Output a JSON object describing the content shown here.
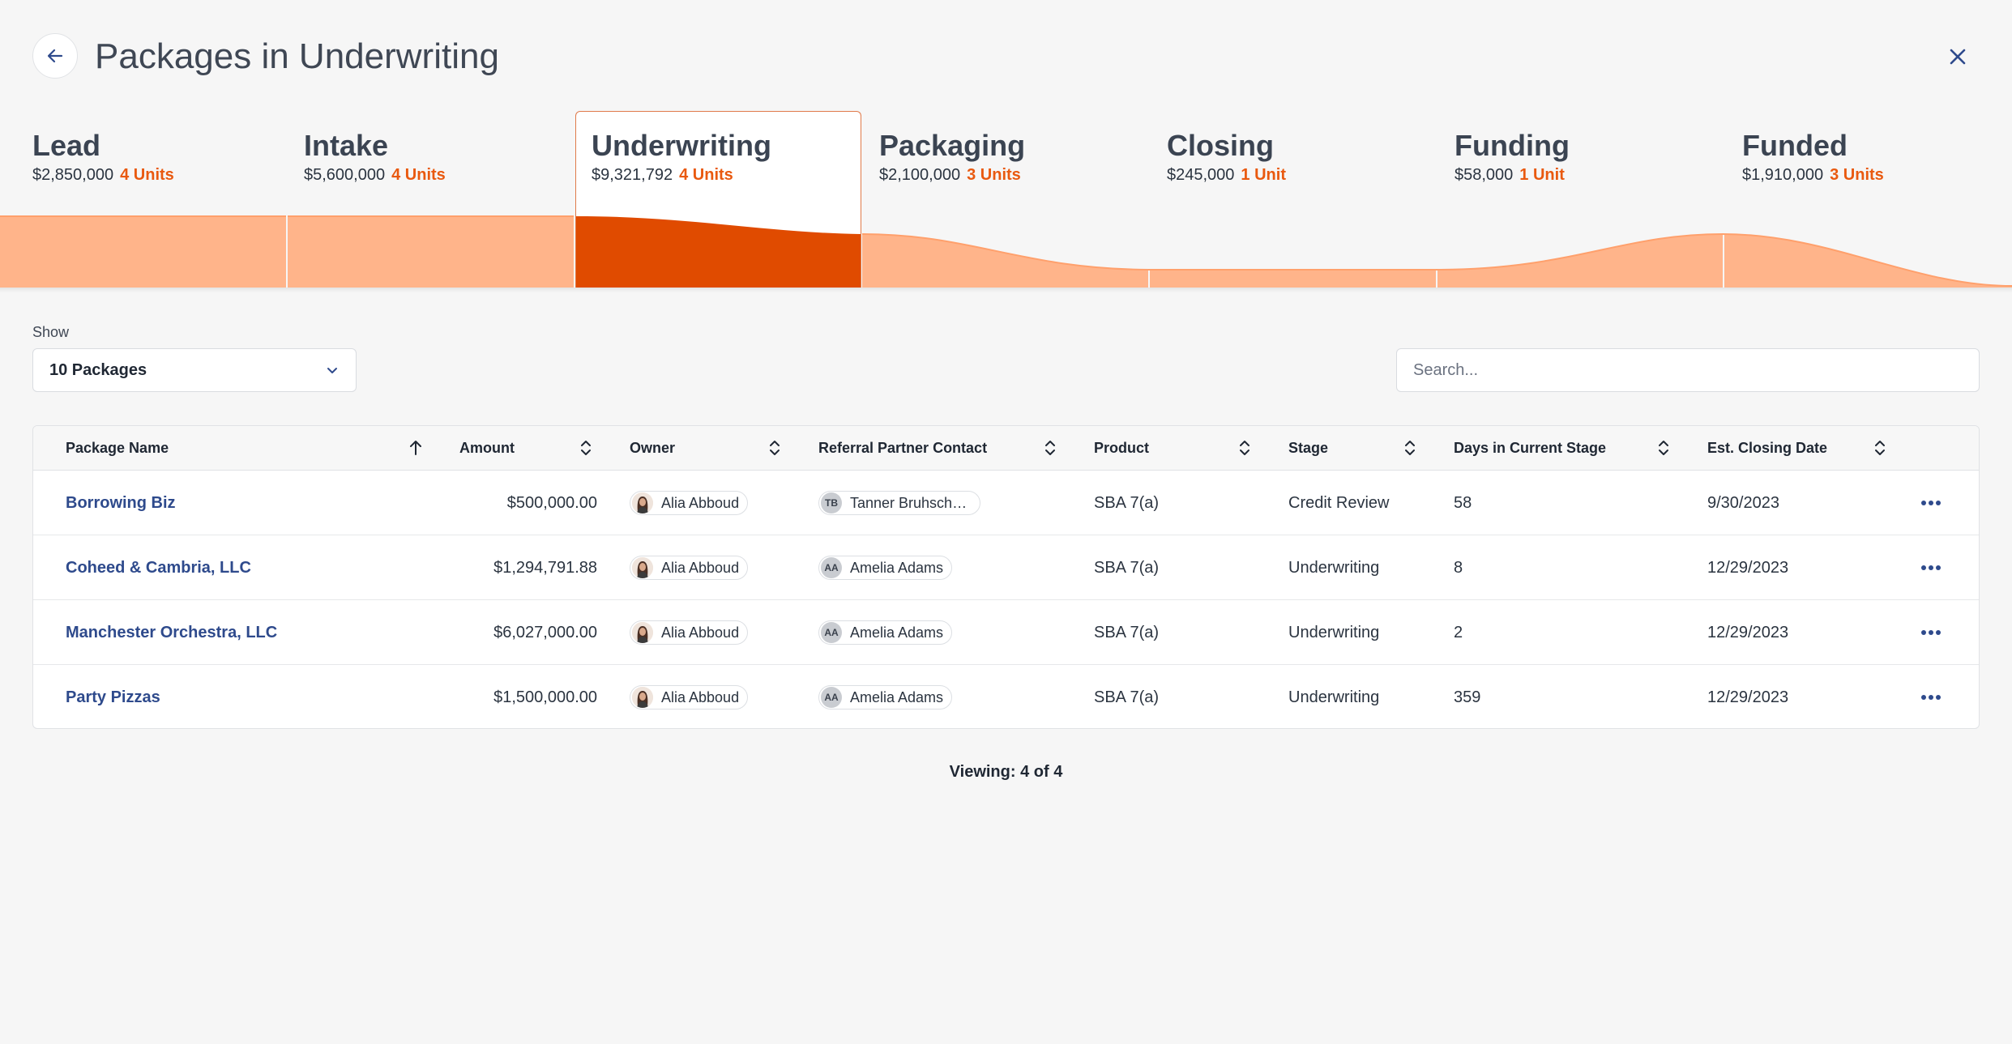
{
  "header": {
    "title": "Packages in Underwriting",
    "back_icon": "arrow-left-icon",
    "close_icon": "close-icon"
  },
  "pipeline": {
    "accent_color": "#e04b00",
    "fill_color": "#ffb48a",
    "stages": [
      {
        "name": "Lead",
        "amount": "$2,850,000",
        "units": "4 Units"
      },
      {
        "name": "Intake",
        "amount": "$5,600,000",
        "units": "4 Units"
      },
      {
        "name": "Underwriting",
        "amount": "$9,321,792",
        "units": "4 Units",
        "active": true
      },
      {
        "name": "Packaging",
        "amount": "$2,100,000",
        "units": "3 Units"
      },
      {
        "name": "Closing",
        "amount": "$245,000",
        "units": "1 Unit"
      },
      {
        "name": "Funding",
        "amount": "$58,000",
        "units": "1 Unit"
      },
      {
        "name": "Funded",
        "amount": "$1,910,000",
        "units": "3 Units"
      }
    ]
  },
  "filters": {
    "show_label": "Show",
    "show_value": "10 Packages",
    "search_placeholder": "Search..."
  },
  "table": {
    "columns": {
      "package_name": "Package Name",
      "amount": "Amount",
      "owner": "Owner",
      "referral": "Referral Partner Contact",
      "product": "Product",
      "stage": "Stage",
      "days": "Days in Current Stage",
      "closing": "Est. Closing Date"
    },
    "rows": [
      {
        "name": "Borrowing Biz",
        "amount": "$500,000.00",
        "owner": "Alia Abboud",
        "ref_initials": "TB",
        "ref_name": "Tanner Bruhschw...",
        "product": "SBA 7(a)",
        "stage": "Credit Review",
        "days": "58",
        "closing": "9/30/2023"
      },
      {
        "name": "Coheed & Cambria, LLC",
        "amount": "$1,294,791.88",
        "owner": "Alia Abboud",
        "ref_initials": "AA",
        "ref_name": "Amelia Adams",
        "product": "SBA 7(a)",
        "stage": "Underwriting",
        "days": "8",
        "closing": "12/29/2023"
      },
      {
        "name": "Manchester Orchestra, LLC",
        "amount": "$6,027,000.00",
        "owner": "Alia Abboud",
        "ref_initials": "AA",
        "ref_name": "Amelia Adams",
        "product": "SBA 7(a)",
        "stage": "Underwriting",
        "days": "2",
        "closing": "12/29/2023"
      },
      {
        "name": "Party Pizzas",
        "amount": "$1,500,000.00",
        "owner": "Alia Abboud",
        "ref_initials": "AA",
        "ref_name": "Amelia Adams",
        "product": "SBA 7(a)",
        "stage": "Underwriting",
        "days": "359",
        "closing": "12/29/2023"
      }
    ]
  },
  "footer": {
    "viewing": "Viewing: 4 of 4"
  }
}
